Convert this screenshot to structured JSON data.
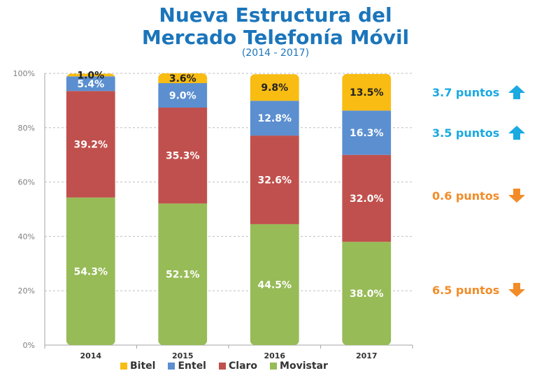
{
  "title_line1": "Nueva Estructura del",
  "title_line2": "Mercado Telefonía Móvil",
  "subtitle": "(2014 - 2017)",
  "colors": {
    "Bitel": "#f8bc12",
    "Entel": "#5b8fd0",
    "Claro": "#c0504d",
    "Movistar": "#97bb57",
    "up": "#1aa9e1",
    "down": "#f28c28"
  },
  "chart_data": {
    "type": "bar",
    "stacked": true,
    "categories": [
      "2014",
      "2015",
      "2016",
      "2017"
    ],
    "series": [
      {
        "name": "Movistar",
        "values": [
          54.3,
          52.1,
          44.5,
          38.0
        ],
        "labels": [
          "54.3%",
          "52.1%",
          "44.5%",
          "38.0%"
        ]
      },
      {
        "name": "Claro",
        "values": [
          39.2,
          35.3,
          32.6,
          32.0
        ],
        "labels": [
          "39.2%",
          "35.3%",
          "32.6%",
          "32.0%"
        ]
      },
      {
        "name": "Entel",
        "values": [
          5.4,
          9.0,
          12.8,
          16.3
        ],
        "labels": [
          "5.4%",
          "9.0%",
          "12.8%",
          "16.3%"
        ]
      },
      {
        "name": "Bitel",
        "values": [
          1.0,
          3.6,
          9.8,
          13.5
        ],
        "labels": [
          "1.0%",
          "3.6%",
          "9.8%",
          "13.5%"
        ]
      }
    ],
    "ylim": [
      0,
      100
    ],
    "yticks": [
      0,
      20,
      40,
      60,
      80,
      100
    ],
    "ytick_labels": [
      "0%",
      "20%",
      "40%",
      "60%",
      "80%",
      "100%"
    ],
    "grid": true,
    "legend_position": "bottom",
    "legend": [
      "Bitel",
      "Entel",
      "Claro",
      "Movistar"
    ]
  },
  "annotations": [
    {
      "series": "Bitel",
      "text": "3.7 puntos",
      "direction": "up"
    },
    {
      "series": "Entel",
      "text": "3.5 puntos",
      "direction": "up"
    },
    {
      "series": "Claro",
      "text": "0.6 puntos",
      "direction": "down"
    },
    {
      "series": "Movistar",
      "text": "6.5 puntos",
      "direction": "down"
    }
  ]
}
